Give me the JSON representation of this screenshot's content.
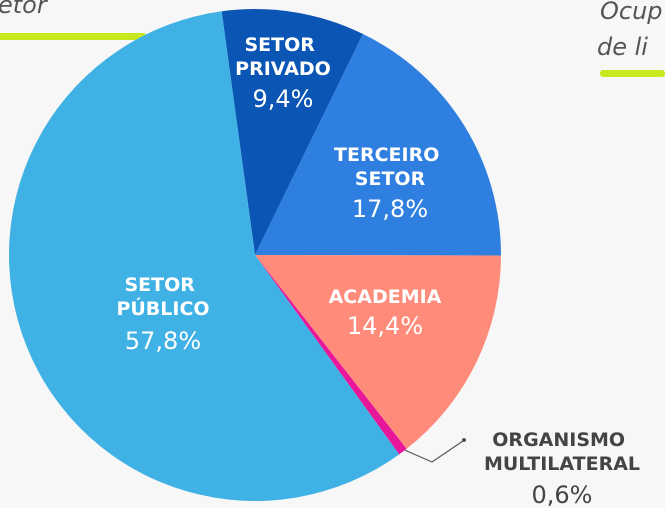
{
  "chart_data": {
    "type": "pie",
    "annotations": [
      "etor",
      "Ocup",
      "de li"
    ],
    "categories": [
      "SETOR PRIVADO",
      "TERCEIRO SETOR",
      "ACADEMIA",
      "ORGANISMO MULTILATERAL",
      "SETOR PÚBLICO"
    ],
    "values": [
      9.4,
      17.8,
      14.4,
      0.6,
      57.8
    ],
    "value_labels": [
      "9,4%",
      "17,8%",
      "14,4%",
      "0,6%",
      "57,8%"
    ],
    "colors": [
      "#0b55b4",
      "#2e7fe0",
      "#ff8c7b",
      "#e8179a",
      "#3fb1e4"
    ]
  }
}
